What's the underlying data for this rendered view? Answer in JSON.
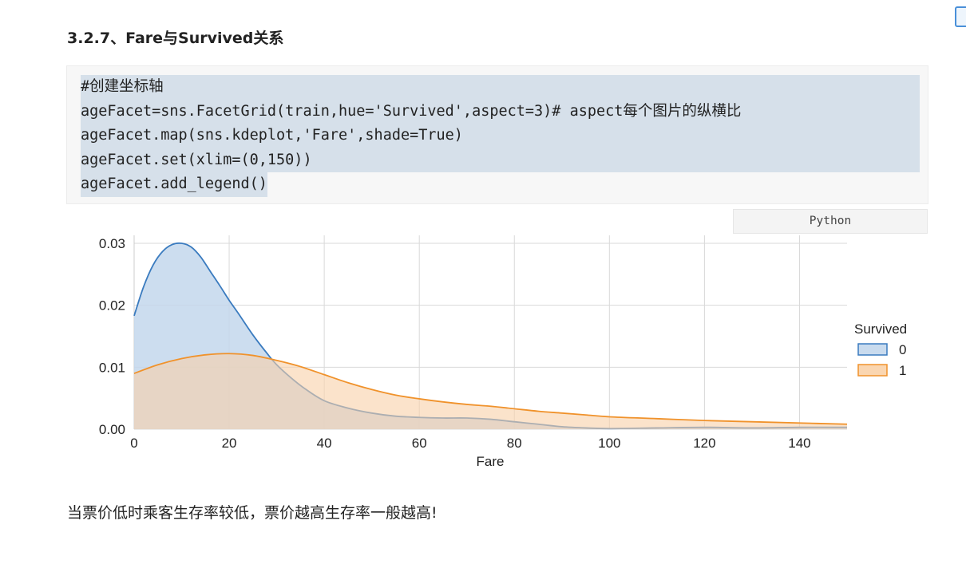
{
  "section": {
    "title": "3.2.7、Fare与Survived关系"
  },
  "code": {
    "lines": [
      "#创建坐标轴",
      "ageFacet=sns.FacetGrid(train,hue='Survived',aspect=3)# aspect每个图片的纵横比",
      "ageFacet.map(sns.kdeplot,'Fare',shade=True)",
      "ageFacet.set(xlim=(0,150))",
      "ageFacet.add_legend()"
    ],
    "language": "Python"
  },
  "conclusion": "当票价低时乘客生存率较低，票价越高生存率一般越高!",
  "colors": {
    "series0": "#3a7bbf",
    "series0_fill": "#c3d7ec",
    "series1": "#f0922b",
    "series1_fill": "#f9d1a8",
    "overlap": "#cfc0ac"
  },
  "chart_data": {
    "type": "area",
    "xlabel": "Fare",
    "ylabel": "",
    "xlim": [
      0,
      150
    ],
    "ylim": [
      0,
      0.03
    ],
    "xticks": [
      0,
      20,
      40,
      60,
      80,
      100,
      120,
      140
    ],
    "yticks": [
      0.0,
      0.01,
      0.02,
      0.03
    ],
    "ytick_labels": [
      "0.00",
      "0.01",
      "0.02",
      "0.03"
    ],
    "grid": true,
    "legend": {
      "title": "Survived",
      "placement": "right",
      "entries": [
        "0",
        "1"
      ]
    },
    "series": [
      {
        "name": "0",
        "x": [
          0,
          2,
          4,
          6,
          8,
          10,
          12,
          14,
          16,
          18,
          20,
          22,
          25,
          28,
          30,
          33,
          36,
          40,
          45,
          50,
          55,
          60,
          65,
          70,
          75,
          80,
          85,
          90,
          95,
          100,
          110,
          120,
          130,
          140,
          150
        ],
        "values": [
          0.0183,
          0.023,
          0.0265,
          0.0287,
          0.0298,
          0.03,
          0.0294,
          0.0278,
          0.0255,
          0.0232,
          0.0208,
          0.0186,
          0.0152,
          0.0122,
          0.0104,
          0.0083,
          0.0065,
          0.0046,
          0.0034,
          0.0026,
          0.0021,
          0.0019,
          0.0018,
          0.0018,
          0.0016,
          0.0012,
          0.0008,
          0.0004,
          0.0002,
          0.0001,
          0.0002,
          0.0003,
          0.0002,
          0.0003,
          0.0003
        ]
      },
      {
        "name": "1",
        "x": [
          0,
          5,
          10,
          15,
          20,
          25,
          30,
          35,
          40,
          45,
          50,
          55,
          60,
          65,
          70,
          75,
          80,
          85,
          90,
          95,
          100,
          110,
          120,
          130,
          140,
          150
        ],
        "values": [
          0.009,
          0.0104,
          0.0114,
          0.012,
          0.0122,
          0.0119,
          0.0111,
          0.0101,
          0.0088,
          0.0075,
          0.0064,
          0.0055,
          0.0049,
          0.0044,
          0.004,
          0.0037,
          0.0033,
          0.0029,
          0.0026,
          0.0023,
          0.002,
          0.0017,
          0.0014,
          0.0012,
          0.001,
          0.0008
        ]
      }
    ]
  }
}
